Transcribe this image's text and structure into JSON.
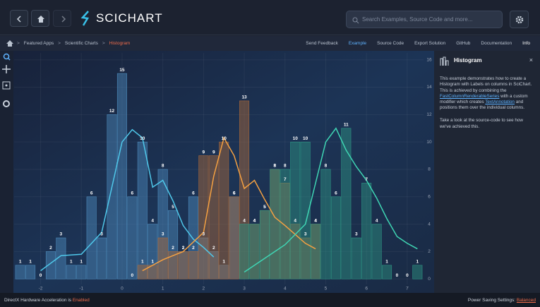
{
  "header": {
    "logo": "SCICHART",
    "search_placeholder": "Search Examples, Source Code and more..."
  },
  "breadcrumb": [
    "Featured Apps",
    "Scientific Charts",
    "Histogram"
  ],
  "toolbar": [
    "Send Feedback",
    "Example",
    "Source Code",
    "Export Solution",
    "GitHub",
    "Documentation",
    "Info"
  ],
  "info_panel": {
    "title": "Histogram",
    "paragraphs": [
      [
        {
          "text": "This example demonstrates how to create a Histogram with Labels on columns in SciChart. This is achieved by combining the "
        },
        {
          "text": "FastColumnRenderableSeries",
          "link": true
        },
        {
          "text": " with a custom modifier which creates "
        },
        {
          "text": "TextAnnotation",
          "link": true
        },
        {
          "text": " and positions them over the individual columns."
        }
      ],
      [
        {
          "text": "Take a look at the source-code to see how we've achieved this."
        }
      ]
    ]
  },
  "status": {
    "left_text": "DirectX Hardware Acceleration is",
    "left_value": "Enabled",
    "right_text": "Power Saving Settings:",
    "right_value": "Balanced"
  },
  "chart_data": {
    "type": "histogram",
    "y_axis_side": "right",
    "grid": true,
    "xlim": [
      -2.65,
      7.4
    ],
    "xticks": [
      -2,
      -1,
      0,
      1,
      2,
      3,
      4,
      5,
      6,
      7
    ],
    "ylim": [
      -0.4,
      16.5
    ],
    "yticks": [
      0,
      2,
      4,
      6,
      8,
      10,
      12,
      14,
      16
    ],
    "bins": [
      -2.625,
      -2.375,
      -2.125,
      -1.875,
      -1.625,
      -1.375,
      -1.125,
      -0.875,
      -0.625,
      -0.375,
      -0.125,
      0.125,
      0.375,
      0.625,
      0.875,
      1.125,
      1.375,
      1.625,
      1.875,
      2.125,
      2.375,
      2.625,
      2.875,
      3.125,
      3.375,
      3.625,
      3.875,
      4.125,
      4.375,
      4.625,
      4.875,
      5.125,
      5.375,
      5.625,
      5.875,
      6.125,
      6.375,
      6.625,
      6.875,
      7.125,
      7.375
    ],
    "series": [
      {
        "color": "#4f8fc0",
        "values": [
          1,
          1,
          0,
          2,
          3,
          1,
          1,
          6,
          3,
          12,
          15,
          6,
          10,
          4,
          8,
          5,
          2,
          6,
          3,
          2,
          1,
          6,
          null,
          null,
          null,
          null,
          null,
          null,
          null,
          null,
          null,
          null,
          null,
          null,
          null,
          null,
          null,
          null,
          null,
          null
        ],
        "line": {
          "color": "#4fc8ea",
          "x": [
            -2,
            -1.5,
            -1,
            -0.5,
            0,
            0.25,
            0.5,
            0.75,
            1,
            1.25,
            1.5,
            1.75,
            2,
            2.25
          ],
          "values": [
            0.6,
            1.7,
            1.8,
            3.4,
            10.0,
            10.9,
            10.3,
            6.7,
            7.2,
            5.7,
            3.9,
            2.9,
            2.3,
            1.6
          ]
        }
      },
      {
        "color": "#b06a38",
        "values": [
          null,
          null,
          null,
          null,
          null,
          null,
          null,
          null,
          null,
          null,
          null,
          0,
          1,
          1,
          3,
          2,
          2,
          2,
          9,
          9,
          10,
          6,
          13,
          4,
          5,
          8,
          7,
          4,
          3,
          4,
          null,
          null,
          null,
          null,
          null,
          null,
          null,
          null,
          null,
          null
        ],
        "line": {
          "color": "#f5a142",
          "x": [
            0.5,
            1,
            1.5,
            2,
            2.25,
            2.5,
            2.75,
            3,
            3.25,
            3.5,
            3.75,
            4,
            4.5,
            4.75
          ],
          "values": [
            0.6,
            1.4,
            2.0,
            3.4,
            7.5,
            10.3,
            9.0,
            6.6,
            7.2,
            5.8,
            4.5,
            3.9,
            2.6,
            2.2
          ]
        }
      },
      {
        "color": "#2f9a86",
        "values": [
          null,
          null,
          null,
          null,
          null,
          null,
          null,
          null,
          null,
          null,
          null,
          null,
          null,
          null,
          null,
          null,
          null,
          null,
          null,
          null,
          null,
          null,
          4,
          4,
          5,
          8,
          8,
          10,
          10,
          4,
          8,
          6,
          11,
          3,
          7,
          4,
          1,
          0,
          0,
          1
        ],
        "line": {
          "color": "#3fd6b4",
          "x": [
            3,
            3.5,
            4,
            4.5,
            4.75,
            5,
            5.25,
            5.5,
            5.75,
            6,
            6.25,
            6.5,
            6.75,
            7,
            7.25
          ],
          "values": [
            0.5,
            1.5,
            2.5,
            4.0,
            7.0,
            10.0,
            11.0,
            9.4,
            8.2,
            7.2,
            5.9,
            4.4,
            3.1,
            2.6,
            2.2
          ]
        }
      }
    ]
  }
}
